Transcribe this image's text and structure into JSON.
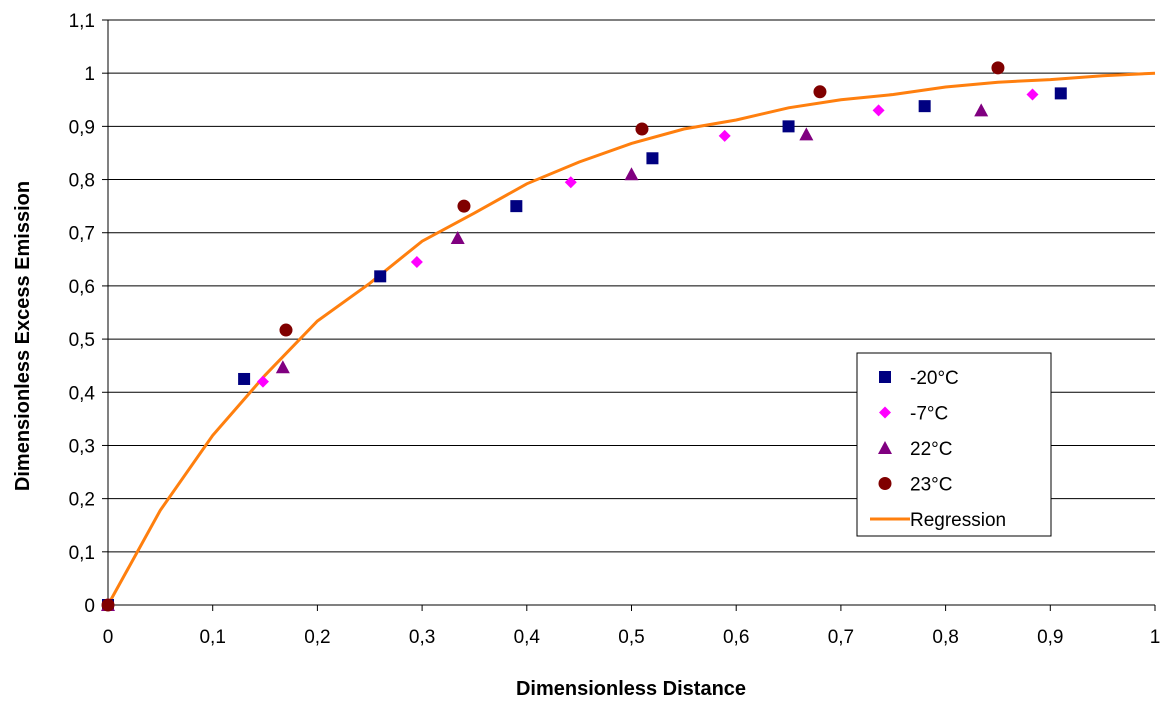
{
  "chart_data": {
    "type": "scatter",
    "title": "",
    "xlabel": "Dimensionless Distance",
    "ylabel": "Dimensionless Excess Emission",
    "xlim": [
      0,
      1
    ],
    "ylim": [
      0,
      1.1
    ],
    "x_ticks": [
      0,
      0.1,
      0.2,
      0.3,
      0.4,
      0.5,
      0.6,
      0.7,
      0.8,
      0.9,
      1
    ],
    "x_tick_labels": [
      "0",
      "0,1",
      "0,2",
      "0,3",
      "0,4",
      "0,5",
      "0,6",
      "0,7",
      "0,8",
      "0,9",
      "1"
    ],
    "y_ticks": [
      0,
      0.1,
      0.2,
      0.3,
      0.4,
      0.5,
      0.6,
      0.7,
      0.8,
      0.9,
      1,
      1.1
    ],
    "y_tick_labels": [
      "0",
      "0,1",
      "0,2",
      "0,3",
      "0,4",
      "0,5",
      "0,6",
      "0,7",
      "0,8",
      "0,9",
      "1",
      "1,1"
    ],
    "grid": "horizontal",
    "legend_position": "right",
    "series": [
      {
        "name": "-20°C",
        "marker": "square",
        "color": "#000080",
        "points": [
          [
            0,
            0
          ],
          [
            0.13,
            0.425
          ],
          [
            0.26,
            0.618
          ],
          [
            0.39,
            0.75
          ],
          [
            0.52,
            0.84
          ],
          [
            0.65,
            0.9
          ],
          [
            0.78,
            0.938
          ],
          [
            0.91,
            0.962
          ]
        ]
      },
      {
        "name": "-7°C",
        "marker": "diamond",
        "color": "#ff00ff",
        "points": [
          [
            0,
            0
          ],
          [
            0.148,
            0.42
          ],
          [
            0.295,
            0.645
          ],
          [
            0.442,
            0.795
          ],
          [
            0.589,
            0.882
          ],
          [
            0.736,
            0.93
          ],
          [
            0.883,
            0.96
          ]
        ]
      },
      {
        "name": "22°C",
        "marker": "triangle",
        "color": "#800080",
        "points": [
          [
            0,
            0
          ],
          [
            0.167,
            0.447
          ],
          [
            0.334,
            0.69
          ],
          [
            0.5,
            0.81
          ],
          [
            0.667,
            0.885
          ],
          [
            0.834,
            0.93
          ]
        ]
      },
      {
        "name": "23°C",
        "marker": "circle",
        "color": "#800000",
        "points": [
          [
            0,
            0
          ],
          [
            0.17,
            0.517
          ],
          [
            0.34,
            0.75
          ],
          [
            0.51,
            0.895
          ],
          [
            0.68,
            0.965
          ],
          [
            0.85,
            1.01
          ]
        ]
      },
      {
        "name": "Regression",
        "type": "line",
        "color": "#ff7f0e",
        "points": [
          [
            0,
            0
          ],
          [
            0.05,
            0.178
          ],
          [
            0.1,
            0.319
          ],
          [
            0.15,
            0.432
          ],
          [
            0.2,
            0.534
          ],
          [
            0.25,
            0.605
          ],
          [
            0.3,
            0.684
          ],
          [
            0.35,
            0.737
          ],
          [
            0.4,
            0.792
          ],
          [
            0.45,
            0.833
          ],
          [
            0.5,
            0.868
          ],
          [
            0.55,
            0.895
          ],
          [
            0.6,
            0.912
          ],
          [
            0.65,
            0.935
          ],
          [
            0.7,
            0.95
          ],
          [
            0.75,
            0.96
          ],
          [
            0.8,
            0.974
          ],
          [
            0.85,
            0.983
          ],
          [
            0.9,
            0.988
          ],
          [
            0.95,
            0.995
          ],
          [
            1.0,
            1.0
          ]
        ]
      }
    ]
  }
}
